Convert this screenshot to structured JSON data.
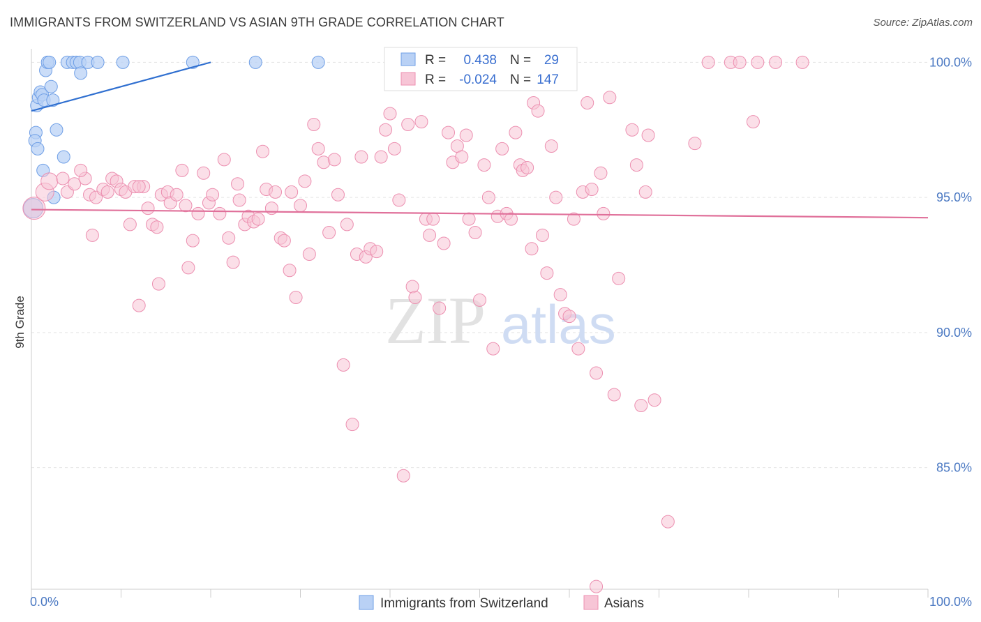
{
  "title": "IMMIGRANTS FROM SWITZERLAND VS ASIAN 9TH GRADE CORRELATION CHART",
  "source": "Source: ZipAtlas.com",
  "watermark": {
    "zip": "ZIP",
    "atlas": "atlas"
  },
  "chart_data": {
    "type": "scatter",
    "title": "IMMIGRANTS FROM SWITZERLAND VS ASIAN 9TH GRADE CORRELATION CHART",
    "xlabel": "",
    "ylabel": "9th Grade",
    "xlim": [
      0,
      100
    ],
    "ylim": [
      80.5,
      100.5
    ],
    "x_tick_labels": [
      "0.0%",
      "100.0%"
    ],
    "y_ticks": [
      85,
      90,
      95,
      100
    ],
    "y_tick_labels": [
      "85.0%",
      "90.0%",
      "95.0%",
      "100.0%"
    ],
    "grid": true,
    "legend_position": "top-center",
    "series": [
      {
        "name": "Immigrants from Switzerland",
        "color": "#6f9fe6",
        "fill": "#b9d1f5",
        "R": "0.438",
        "N": "29",
        "trend": {
          "x": [
            0,
            20
          ],
          "y": [
            98.2,
            100.0
          ]
        },
        "points": [
          {
            "x": 0.2,
            "y": 94.6,
            "s": 14
          },
          {
            "x": 0.6,
            "y": 98.4
          },
          {
            "x": 0.8,
            "y": 98.7
          },
          {
            "x": 0.5,
            "y": 97.4
          },
          {
            "x": 0.4,
            "y": 97.1
          },
          {
            "x": 0.7,
            "y": 96.8
          },
          {
            "x": 1.0,
            "y": 98.9
          },
          {
            "x": 1.2,
            "y": 98.8
          },
          {
            "x": 1.4,
            "y": 98.6
          },
          {
            "x": 1.6,
            "y": 99.7
          },
          {
            "x": 1.8,
            "y": 100.0
          },
          {
            "x": 2.0,
            "y": 100.0
          },
          {
            "x": 2.2,
            "y": 99.1
          },
          {
            "x": 2.4,
            "y": 98.6
          },
          {
            "x": 2.8,
            "y": 97.5
          },
          {
            "x": 3.6,
            "y": 96.5
          },
          {
            "x": 1.3,
            "y": 96.0
          },
          {
            "x": 2.5,
            "y": 95.0
          },
          {
            "x": 4.0,
            "y": 100.0
          },
          {
            "x": 4.6,
            "y": 100.0
          },
          {
            "x": 5.0,
            "y": 100.0
          },
          {
            "x": 5.4,
            "y": 100.0
          },
          {
            "x": 5.5,
            "y": 99.6
          },
          {
            "x": 6.3,
            "y": 100.0
          },
          {
            "x": 7.4,
            "y": 100.0
          },
          {
            "x": 10.2,
            "y": 100.0
          },
          {
            "x": 18.0,
            "y": 100.0
          },
          {
            "x": 25.0,
            "y": 100.0
          },
          {
            "x": 32.0,
            "y": 100.0
          }
        ]
      },
      {
        "name": "Asians",
        "color": "#ec8fb0",
        "fill": "#f7c5d6",
        "R": "-0.024",
        "N": "147",
        "trend": {
          "x": [
            0,
            100
          ],
          "y": [
            94.55,
            94.25
          ]
        },
        "points": [
          {
            "x": 0.3,
            "y": 94.6,
            "s": 16
          },
          {
            "x": 1.5,
            "y": 95.2,
            "s": 13
          },
          {
            "x": 2.0,
            "y": 95.6,
            "s": 12
          },
          {
            "x": 3.5,
            "y": 95.7
          },
          {
            "x": 4.0,
            "y": 95.2
          },
          {
            "x": 4.8,
            "y": 95.5
          },
          {
            "x": 6.0,
            "y": 95.7
          },
          {
            "x": 6.5,
            "y": 95.1
          },
          {
            "x": 7.2,
            "y": 95.0
          },
          {
            "x": 5.5,
            "y": 96.0
          },
          {
            "x": 8.0,
            "y": 95.3
          },
          {
            "x": 8.5,
            "y": 95.2
          },
          {
            "x": 9.0,
            "y": 95.7
          },
          {
            "x": 9.5,
            "y": 95.6
          },
          {
            "x": 10.0,
            "y": 95.3
          },
          {
            "x": 10.5,
            "y": 95.2
          },
          {
            "x": 11.5,
            "y": 95.4
          },
          {
            "x": 12.5,
            "y": 95.4
          },
          {
            "x": 13.0,
            "y": 94.6
          },
          {
            "x": 13.5,
            "y": 94.0
          },
          {
            "x": 14.0,
            "y": 93.9
          },
          {
            "x": 14.5,
            "y": 95.1
          },
          {
            "x": 15.2,
            "y": 95.2
          },
          {
            "x": 15.5,
            "y": 94.8
          },
          {
            "x": 16.2,
            "y": 95.1
          },
          {
            "x": 16.8,
            "y": 96.0
          },
          {
            "x": 17.2,
            "y": 94.7
          },
          {
            "x": 18.0,
            "y": 93.4
          },
          {
            "x": 18.6,
            "y": 94.4
          },
          {
            "x": 19.2,
            "y": 95.9
          },
          {
            "x": 19.8,
            "y": 94.8
          },
          {
            "x": 20.2,
            "y": 95.1
          },
          {
            "x": 21.0,
            "y": 94.4
          },
          {
            "x": 21.5,
            "y": 96.4
          },
          {
            "x": 22.0,
            "y": 93.5
          },
          {
            "x": 22.5,
            "y": 92.6
          },
          {
            "x": 23.2,
            "y": 94.9
          },
          {
            "x": 23.8,
            "y": 94.0
          },
          {
            "x": 24.2,
            "y": 94.3
          },
          {
            "x": 24.8,
            "y": 94.1
          },
          {
            "x": 25.3,
            "y": 94.2
          },
          {
            "x": 25.8,
            "y": 96.7
          },
          {
            "x": 26.2,
            "y": 95.3
          },
          {
            "x": 26.8,
            "y": 94.6
          },
          {
            "x": 27.2,
            "y": 95.2
          },
          {
            "x": 27.8,
            "y": 93.5
          },
          {
            "x": 28.2,
            "y": 93.4
          },
          {
            "x": 29.0,
            "y": 95.2
          },
          {
            "x": 28.8,
            "y": 92.3
          },
          {
            "x": 29.5,
            "y": 91.3
          },
          {
            "x": 30.0,
            "y": 94.7
          },
          {
            "x": 30.5,
            "y": 95.6
          },
          {
            "x": 31.0,
            "y": 92.9
          },
          {
            "x": 31.5,
            "y": 97.7
          },
          {
            "x": 32.0,
            "y": 96.8
          },
          {
            "x": 32.6,
            "y": 96.3
          },
          {
            "x": 33.2,
            "y": 93.7
          },
          {
            "x": 33.8,
            "y": 96.4
          },
          {
            "x": 34.2,
            "y": 95.1
          },
          {
            "x": 34.8,
            "y": 88.8
          },
          {
            "x": 35.2,
            "y": 94.0
          },
          {
            "x": 35.8,
            "y": 86.6
          },
          {
            "x": 36.3,
            "y": 92.9
          },
          {
            "x": 36.8,
            "y": 96.5
          },
          {
            "x": 37.3,
            "y": 92.8
          },
          {
            "x": 37.8,
            "y": 93.1
          },
          {
            "x": 38.5,
            "y": 93.0
          },
          {
            "x": 39.0,
            "y": 96.5
          },
          {
            "x": 39.5,
            "y": 97.5
          },
          {
            "x": 40.0,
            "y": 98.1
          },
          {
            "x": 40.5,
            "y": 96.8
          },
          {
            "x": 41.0,
            "y": 94.9
          },
          {
            "x": 41.5,
            "y": 84.7
          },
          {
            "x": 42.0,
            "y": 97.7
          },
          {
            "x": 42.5,
            "y": 91.7
          },
          {
            "x": 42.8,
            "y": 91.3
          },
          {
            "x": 43.5,
            "y": 97.8
          },
          {
            "x": 44.0,
            "y": 94.2
          },
          {
            "x": 44.4,
            "y": 93.6
          },
          {
            "x": 44.8,
            "y": 94.2
          },
          {
            "x": 45.5,
            "y": 90.9
          },
          {
            "x": 46.0,
            "y": 93.3
          },
          {
            "x": 46.5,
            "y": 97.4
          },
          {
            "x": 47.0,
            "y": 96.3
          },
          {
            "x": 47.5,
            "y": 96.9
          },
          {
            "x": 48.0,
            "y": 96.5
          },
          {
            "x": 48.5,
            "y": 97.3
          },
          {
            "x": 48.8,
            "y": 94.2
          },
          {
            "x": 49.5,
            "y": 93.7
          },
          {
            "x": 50.0,
            "y": 91.2
          },
          {
            "x": 50.5,
            "y": 96.2
          },
          {
            "x": 51.0,
            "y": 95.0
          },
          {
            "x": 51.5,
            "y": 89.4
          },
          {
            "x": 52.0,
            "y": 94.3
          },
          {
            "x": 52.5,
            "y": 96.8
          },
          {
            "x": 53.0,
            "y": 94.4
          },
          {
            "x": 53.5,
            "y": 94.2
          },
          {
            "x": 54.0,
            "y": 97.4
          },
          {
            "x": 54.5,
            "y": 96.2
          },
          {
            "x": 54.8,
            "y": 96.0
          },
          {
            "x": 55.3,
            "y": 96.1
          },
          {
            "x": 55.8,
            "y": 93.1
          },
          {
            "x": 56.0,
            "y": 98.5
          },
          {
            "x": 56.5,
            "y": 98.2
          },
          {
            "x": 57.0,
            "y": 93.6
          },
          {
            "x": 57.5,
            "y": 92.2
          },
          {
            "x": 58.0,
            "y": 96.9
          },
          {
            "x": 58.5,
            "y": 95.0
          },
          {
            "x": 59.0,
            "y": 91.4
          },
          {
            "x": 59.5,
            "y": 90.7
          },
          {
            "x": 60.0,
            "y": 90.6
          },
          {
            "x": 60.5,
            "y": 94.2
          },
          {
            "x": 61.0,
            "y": 89.4
          },
          {
            "x": 61.5,
            "y": 95.2
          },
          {
            "x": 62.0,
            "y": 98.5
          },
          {
            "x": 62.5,
            "y": 95.3
          },
          {
            "x": 63.0,
            "y": 88.5
          },
          {
            "x": 63.5,
            "y": 95.9
          },
          {
            "x": 63.8,
            "y": 94.4
          },
          {
            "x": 64.5,
            "y": 98.7
          },
          {
            "x": 65.0,
            "y": 87.7
          },
          {
            "x": 65.5,
            "y": 92.0
          },
          {
            "x": 67.0,
            "y": 97.5
          },
          {
            "x": 67.5,
            "y": 96.2
          },
          {
            "x": 68.0,
            "y": 87.3
          },
          {
            "x": 68.5,
            "y": 95.2
          },
          {
            "x": 68.8,
            "y": 97.3
          },
          {
            "x": 69.5,
            "y": 87.5
          },
          {
            "x": 71.0,
            "y": 83.0
          },
          {
            "x": 74.0,
            "y": 97.0
          },
          {
            "x": 75.5,
            "y": 100.0
          },
          {
            "x": 78.0,
            "y": 100.0
          },
          {
            "x": 79.0,
            "y": 100.0
          },
          {
            "x": 80.5,
            "y": 97.8
          },
          {
            "x": 81.0,
            "y": 100.0
          },
          {
            "x": 83.0,
            "y": 100.0
          },
          {
            "x": 86.0,
            "y": 100.0
          },
          {
            "x": 63.0,
            "y": 80.6
          },
          {
            "x": 23.0,
            "y": 95.5
          },
          {
            "x": 6.8,
            "y": 93.6
          },
          {
            "x": 11.0,
            "y": 94.0
          },
          {
            "x": 12.0,
            "y": 95.4
          },
          {
            "x": 14.2,
            "y": 91.8
          },
          {
            "x": 12.0,
            "y": 91.0
          },
          {
            "x": 17.5,
            "y": 92.4
          }
        ]
      }
    ]
  },
  "legend": {
    "rows": [
      {
        "r_label": "R =",
        "r_value": "0.438",
        "n_label": "N =",
        "n_value": "29"
      },
      {
        "r_label": "R =",
        "r_value": "-0.024",
        "n_label": "N =",
        "n_value": "147"
      }
    ]
  },
  "bottom_legend": [
    {
      "label": "Immigrants from Switzerland"
    },
    {
      "label": "Asians"
    }
  ]
}
